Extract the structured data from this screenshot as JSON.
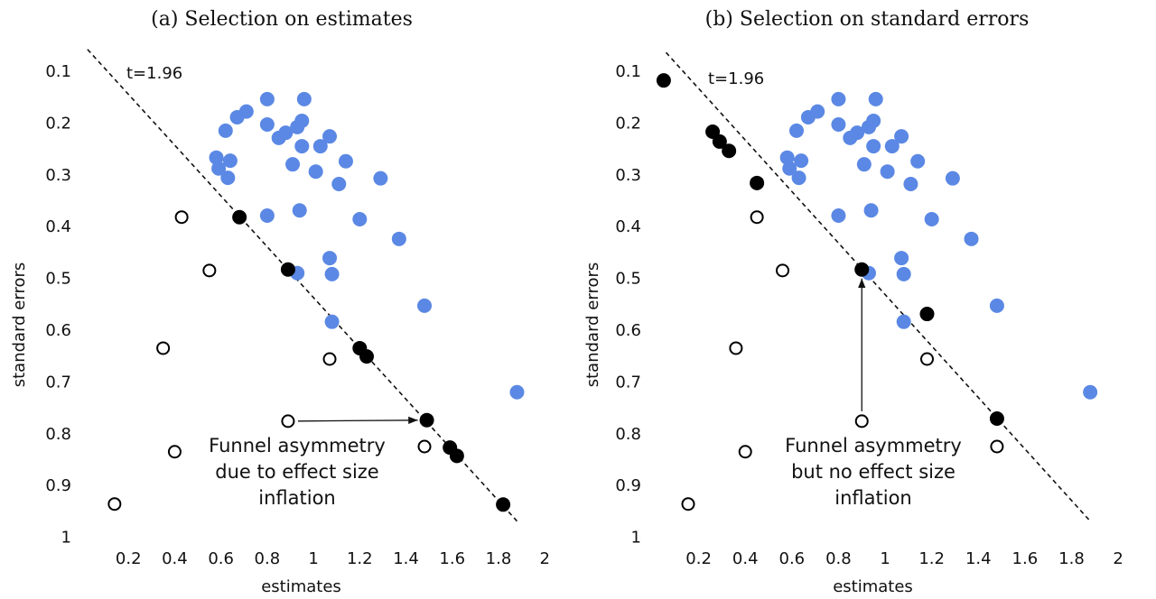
{
  "chart_data": [
    {
      "type": "scatter",
      "title": "(a) Selection on estimates",
      "xlabel": "estimates",
      "ylabel": "standard errors",
      "xlim": [
        0,
        2.05
      ],
      "ylim": [
        0.05,
        1
      ],
      "y_inverted": true,
      "xticks": [
        0.2,
        0.4,
        0.6,
        0.8,
        1,
        1.2,
        1.4,
        1.6,
        1.8,
        2
      ],
      "yticks": [
        0.1,
        0.2,
        0.3,
        0.4,
        0.5,
        0.6,
        0.7,
        0.8,
        0.9,
        1
      ],
      "reference_line": {
        "label": "t=1.96",
        "x": [
          0.023,
          1.88
        ],
        "y": [
          0.056,
          0.967
        ]
      },
      "annotation": [
        "Funnel asymmetry",
        "due to effect size",
        "inflation"
      ],
      "series": [
        {
          "color": "#5b88e4",
          "filled": true,
          "x": [
            0.8,
            0.96,
            0.67,
            0.71,
            0.62,
            0.8,
            0.95,
            0.93,
            0.88,
            0.85,
            1.07,
            1.03,
            0.95,
            0.58,
            0.64,
            0.59,
            1.14,
            0.91,
            1.01,
            1.11,
            0.63,
            1.29,
            0.8,
            0.94,
            1.2,
            1.37,
            1.07,
            0.93,
            1.08,
            1.48,
            1.08,
            1.88
          ],
          "values": [
            0.152,
            0.152,
            0.187,
            0.176,
            0.213,
            0.201,
            0.194,
            0.206,
            0.217,
            0.227,
            0.224,
            0.243,
            0.243,
            0.265,
            0.271,
            0.286,
            0.272,
            0.278,
            0.292,
            0.316,
            0.304,
            0.305,
            0.377,
            0.367,
            0.384,
            0.422,
            0.459,
            0.488,
            0.49,
            0.551,
            0.582,
            0.718
          ]
        },
        {
          "color": "#000000",
          "filled": true,
          "x": [
            0.68,
            0.89,
            1.2,
            1.23,
            1.49,
            1.59,
            1.62,
            1.82
          ],
          "values": [
            0.38,
            0.481,
            0.633,
            0.649,
            0.772,
            0.825,
            0.841,
            0.935
          ]
        },
        {
          "color": "#000000",
          "filled": false,
          "x": [
            0.43,
            0.55,
            0.35,
            1.07,
            0.89,
            1.48,
            0.4,
            0.14
          ],
          "values": [
            0.38,
            0.483,
            0.633,
            0.654,
            0.774,
            0.823,
            0.833,
            0.934
          ]
        }
      ]
    },
    {
      "type": "scatter",
      "title": "(b) Selection on standard errors",
      "xlabel": "estimates",
      "ylabel": "standard errors",
      "xlim": [
        0,
        2.05
      ],
      "ylim": [
        0.05,
        1
      ],
      "y_inverted": true,
      "xticks": [
        0.2,
        0.4,
        0.6,
        0.8,
        1,
        1.2,
        1.4,
        1.6,
        1.8,
        2
      ],
      "yticks": [
        0.1,
        0.2,
        0.3,
        0.4,
        0.5,
        0.6,
        0.7,
        0.8,
        0.9,
        1
      ],
      "reference_line": {
        "label": "t=1.96",
        "x": [
          0.06,
          1.88
        ],
        "y": [
          0.062,
          0.967
        ]
      },
      "annotation": [
        "Funnel asymmetry",
        "but no effect size",
        "inflation"
      ],
      "series": [
        {
          "color": "#5b88e4",
          "filled": true,
          "x": [
            0.8,
            0.96,
            0.67,
            0.71,
            0.62,
            0.8,
            0.95,
            0.93,
            0.88,
            0.85,
            1.07,
            1.03,
            0.95,
            0.58,
            0.64,
            0.59,
            1.14,
            0.91,
            1.01,
            1.11,
            0.63,
            1.29,
            0.8,
            0.94,
            1.2,
            1.37,
            1.07,
            0.93,
            1.08,
            1.48,
            1.08,
            1.88
          ],
          "values": [
            0.152,
            0.152,
            0.187,
            0.176,
            0.213,
            0.201,
            0.194,
            0.206,
            0.217,
            0.227,
            0.224,
            0.243,
            0.243,
            0.265,
            0.271,
            0.286,
            0.272,
            0.278,
            0.292,
            0.316,
            0.304,
            0.305,
            0.377,
            0.367,
            0.384,
            0.422,
            0.459,
            0.488,
            0.49,
            0.551,
            0.582,
            0.718
          ]
        },
        {
          "color": "#000000",
          "filled": true,
          "x": [
            0.05,
            0.26,
            0.29,
            0.33,
            0.45,
            0.9,
            1.18,
            1.48
          ],
          "values": [
            0.116,
            0.215,
            0.234,
            0.252,
            0.314,
            0.481,
            0.567,
            0.769
          ]
        },
        {
          "color": "#000000",
          "filled": false,
          "x": [
            0.45,
            0.56,
            0.36,
            1.18,
            0.9,
            1.48,
            0.4,
            0.155
          ],
          "values": [
            0.38,
            0.483,
            0.633,
            0.654,
            0.774,
            0.823,
            0.833,
            0.934
          ]
        }
      ]
    }
  ]
}
